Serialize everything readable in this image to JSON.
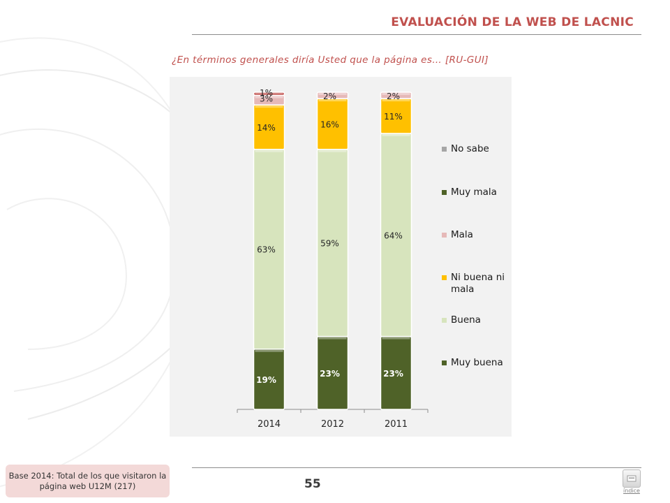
{
  "header": {
    "title": "EVALUACIÓN DE LA WEB DE LACNIC"
  },
  "question": "¿En términos generales diría Usted que la página es… [RU-GUI]",
  "footer": {
    "base_note": "Base 2014: Total de los que visitaron la página web U12M (217)",
    "page_number": "55",
    "index_label": "índice"
  },
  "chart_data": {
    "type": "bar",
    "stacked": true,
    "categories": [
      "2014",
      "2012",
      "2011"
    ],
    "series": [
      {
        "name": "Muy buena",
        "color": "#4f6228",
        "values": [
          19,
          23,
          23
        ],
        "labels": [
          "19%",
          "23%",
          "23%"
        ]
      },
      {
        "name": "Buena",
        "color": "#d7e4bd",
        "values": [
          63,
          59,
          64
        ],
        "labels": [
          "63%",
          "59%",
          "64%"
        ]
      },
      {
        "name": "Ni buena ni mala",
        "color": "#ffc000",
        "values": [
          14,
          16,
          11
        ],
        "labels": [
          "14%",
          "16%",
          "11%"
        ]
      },
      {
        "name": "Mala",
        "color": "#e6b9b8",
        "values": [
          3,
          2,
          2
        ],
        "labels": [
          "3%",
          "2%",
          "2%"
        ]
      },
      {
        "name": "Muy mala",
        "color": "#c0504d",
        "values": [
          1,
          0,
          0
        ],
        "labels": [
          "1%",
          "",
          ""
        ]
      },
      {
        "name": "No sabe",
        "color": "#a6a6a6",
        "values": [
          0,
          0,
          0
        ],
        "labels": [
          "",
          "",
          ""
        ]
      }
    ],
    "ylim": [
      0,
      100
    ],
    "legend_position": "right",
    "legend_order": [
      "No sabe",
      "Muy mala",
      "Mala",
      "Ni buena ni mala",
      "Buena",
      "Muy buena"
    ]
  }
}
